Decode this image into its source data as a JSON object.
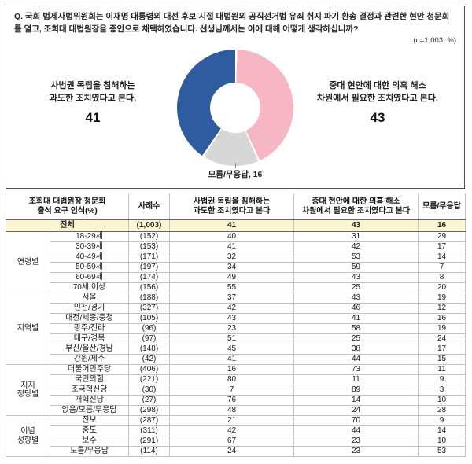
{
  "question": {
    "text": "Q. 국회 법제사법위원회는 이재명 대통령의 대선 후보 시절 대법원의 공직선거법 유죄 취지 파기 환송 결정과 관련한 현안 청문회를 열고, 조희대 대법원장을 증인으로 채택하였습니다. 선생님께서는 이에 대해 어떻게 생각하십니까?",
    "note": "(n=1,003,  %)"
  },
  "chart_data": {
    "type": "pie",
    "title": "조희대 대법원장 청문회 출석 요구 인식",
    "unit": "%",
    "n": "1,003",
    "slices": [
      {
        "label": "중대 현안에 대한 의혹 해소 차원에서 필요한 조치였다고 본다",
        "value": 43,
        "color": "#f6b6c3"
      },
      {
        "label": "모름/무응답",
        "value": 16,
        "color": "#d7d7d7"
      },
      {
        "label": "사법권 독립을 침해하는 과도한 조치였다고 본다",
        "value": 41,
        "color": "#2e5c9e"
      }
    ],
    "labels": {
      "left": "사법권 독립을 침해하는\n과도한 조치였다고 본다,",
      "left_value": "41",
      "right": "중대 현안에 대한 의혹 해소\n차원에서 필요한 조치였다고 본다,",
      "right_value": "43",
      "bottom": "모름/무응답, 16"
    },
    "colors": {
      "blue": "#2e5c9e",
      "pink": "#f6b6c3",
      "gray": "#d7d7d7",
      "total_row_bg": "#fcf5d2"
    }
  },
  "table": {
    "headers": [
      "조희대 대법원장 청문회\n출석 요구 인식(%)",
      "사례수",
      "사법권 독립을 침해하는\n과도한 조치였다고 본다",
      "중대 현안에 대한 의혹 해소\n차원에서 필요한 조치였다고 본다",
      "모름/무응답"
    ],
    "total_row": {
      "label": "전체",
      "n": "(1,003)",
      "values": [
        41,
        43,
        16
      ]
    },
    "groups": [
      {
        "name": "연령별",
        "rows": [
          {
            "label": "18-29세",
            "n": "(152)",
            "values": [
              40,
              31,
              29
            ]
          },
          {
            "label": "30-39세",
            "n": "(153)",
            "values": [
              41,
              42,
              17
            ]
          },
          {
            "label": "40-49세",
            "n": "(171)",
            "values": [
              32,
              53,
              14
            ]
          },
          {
            "label": "50-59세",
            "n": "(197)",
            "values": [
              34,
              59,
              7
            ]
          },
          {
            "label": "60-69세",
            "n": "(174)",
            "values": [
              49,
              43,
              8
            ]
          },
          {
            "label": "70세 이상",
            "n": "(156)",
            "values": [
              55,
              25,
              20
            ]
          }
        ]
      },
      {
        "name": "지역별",
        "rows": [
          {
            "label": "서울",
            "n": "(188)",
            "values": [
              37,
              43,
              19
            ]
          },
          {
            "label": "인천/경기",
            "n": "(327)",
            "values": [
              42,
              46,
              12
            ]
          },
          {
            "label": "대전/세종/충청",
            "n": "(105)",
            "values": [
              43,
              41,
              16
            ]
          },
          {
            "label": "광주/전라",
            "n": "(96)",
            "values": [
              23,
              58,
              19
            ]
          },
          {
            "label": "대구/경북",
            "n": "(97)",
            "values": [
              51,
              25,
              24
            ]
          },
          {
            "label": "부산/울산/경남",
            "n": "(148)",
            "values": [
              45,
              38,
              17
            ]
          },
          {
            "label": "강원/제주",
            "n": "(42)",
            "values": [
              41,
              44,
              15
            ]
          }
        ]
      },
      {
        "name": "지지\n정당별",
        "rows": [
          {
            "label": "더불어민주당",
            "n": "(406)",
            "values": [
              16,
              73,
              11
            ]
          },
          {
            "label": "국민의힘",
            "n": "(221)",
            "values": [
              80,
              11,
              9
            ]
          },
          {
            "label": "조국혁신당",
            "n": "(30)",
            "values": [
              7,
              89,
              3
            ]
          },
          {
            "label": "개혁신당",
            "n": "(27)",
            "values": [
              76,
              14,
              10
            ]
          },
          {
            "label": "없음/모름/무응답",
            "n": "(298)",
            "values": [
              48,
              24,
              28
            ]
          }
        ]
      },
      {
        "name": "이념\n성향별",
        "rows": [
          {
            "label": "진보",
            "n": "(287)",
            "values": [
              21,
              70,
              9
            ]
          },
          {
            "label": "중도",
            "n": "(311)",
            "values": [
              42,
              44,
              14
            ]
          },
          {
            "label": "보수",
            "n": "(291)",
            "values": [
              67,
              23,
              10
            ]
          },
          {
            "label": "모름/무응답",
            "n": "(114)",
            "values": [
              24,
              23,
              53
            ]
          }
        ]
      }
    ]
  }
}
